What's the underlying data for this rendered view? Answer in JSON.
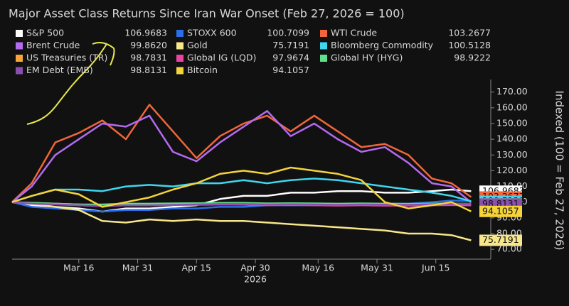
{
  "chart_data": {
    "type": "line",
    "title": "Major Asset Class Returns Since Iran War Onset (Feb 27, 2026 = 100)",
    "y_axis_label": "Indexed (100 = Feb 27, 2026)",
    "year_label": "2026",
    "x": [
      "2026-02-27",
      "2026-03-04",
      "2026-03-10",
      "2026-03-16",
      "2026-03-22",
      "2026-03-28",
      "2026-04-03",
      "2026-04-09",
      "2026-04-15",
      "2026-04-21",
      "2026-04-27",
      "2026-05-03",
      "2026-05-09",
      "2026-05-15",
      "2026-05-21",
      "2026-05-27",
      "2026-06-02",
      "2026-06-08",
      "2026-06-14",
      "2026-06-19",
      "2026-06-24"
    ],
    "xlim": [
      "2026-02-27",
      "2026-06-29"
    ],
    "xticks": [
      {
        "value": "2026-03-16",
        "label": "Mar 16"
      },
      {
        "value": "2026-03-31",
        "label": "Mar 31"
      },
      {
        "value": "2026-04-15",
        "label": "Apr 15"
      },
      {
        "value": "2026-04-30",
        "label": "Apr 30"
      },
      {
        "value": "2026-05-16",
        "label": "May 16"
      },
      {
        "value": "2026-05-31",
        "label": "May 31"
      },
      {
        "value": "2026-06-15",
        "label": "Jun 15"
      }
    ],
    "ylim": [
      66,
      178
    ],
    "yticks": [
      {
        "value": 70,
        "label": "70.00"
      },
      {
        "value": 80,
        "label": "80.00"
      },
      {
        "value": 90,
        "label": "90.00"
      },
      {
        "value": 100,
        "label": "100.00"
      },
      {
        "value": 110,
        "label": "110.00"
      },
      {
        "value": 120,
        "label": "120.00"
      },
      {
        "value": 130,
        "label": "130.00"
      },
      {
        "value": 140,
        "label": "140.00"
      },
      {
        "value": 150,
        "label": "150.00"
      },
      {
        "value": 160,
        "label": "160.00"
      },
      {
        "value": 170,
        "label": "170.00"
      }
    ],
    "series": [
      {
        "name": "S&P 500",
        "legend_value": "106.9683",
        "color": "#ffffff",
        "values": [
          100,
          98,
          97,
          96,
          94,
          96,
          96,
          97,
          98,
          102,
          104,
          104,
          106,
          106,
          107,
          107,
          106,
          106,
          107,
          108,
          106.9683
        ]
      },
      {
        "name": "STOXX 600",
        "legend_value": "100.7099",
        "color": "#2b6fe8",
        "values": [
          100,
          97,
          96,
          95,
          94,
          95,
          95,
          96,
          96,
          97,
          97,
          98,
          98,
          98,
          98,
          99,
          99,
          99,
          100,
          101,
          100.7099
        ]
      },
      {
        "name": "WTI Crude",
        "legend_value": "103.2677",
        "color": "#f0663a",
        "values": [
          100,
          112,
          138,
          144,
          152,
          140,
          162,
          145,
          128,
          142,
          150,
          155,
          145,
          155,
          145,
          135,
          137,
          130,
          115,
          112,
          103.2677
        ]
      },
      {
        "name": "Brent Crude",
        "legend_value": "99.8620",
        "color": "#b36bf0",
        "values": [
          100,
          110,
          130,
          140,
          150,
          148,
          155,
          132,
          126,
          138,
          148,
          158,
          142,
          150,
          140,
          132,
          135,
          125,
          112,
          110,
          99.862
        ]
      },
      {
        "name": "Gold",
        "legend_value": "75.7191",
        "color": "#f7e68a",
        "values": [
          100,
          99,
          97,
          95,
          88,
          87,
          89,
          88,
          89,
          88,
          88,
          87,
          86,
          85,
          84,
          83,
          82,
          80,
          80,
          79,
          75.7191
        ]
      },
      {
        "name": "Bloomberg Commodity",
        "legend_value": "100.5128",
        "color": "#3fd6f0",
        "values": [
          100,
          104,
          108,
          108,
          107,
          110,
          111,
          110,
          112,
          112,
          114,
          112,
          114,
          115,
          114,
          112,
          110,
          108,
          106,
          104,
          100.5128
        ]
      },
      {
        "name": "US Treasuries (TR)",
        "legend_value": "98.7831",
        "color": "#f5a53a",
        "values": [
          100,
          99.5,
          99,
          98.5,
          98,
          98.5,
          98.5,
          98.7,
          98.8,
          99,
          99,
          98.5,
          98.6,
          98.5,
          98.3,
          98.5,
          98.2,
          98.2,
          98.5,
          98.8,
          98.7831
        ]
      },
      {
        "name": "Global IG (LQD)",
        "legend_value": "97.9674",
        "color": "#e845a0",
        "values": [
          100,
          99.5,
          99,
          98,
          97.5,
          98,
          98,
          98.2,
          98.3,
          98.5,
          98.4,
          98,
          98.2,
          98,
          97.8,
          98,
          97.8,
          97.8,
          98,
          98.1,
          97.9674
        ]
      },
      {
        "name": "Global HY (HYG)",
        "legend_value": "98.9222",
        "color": "#5fe08a",
        "values": [
          100,
          99.5,
          99,
          98.5,
          98.5,
          99,
          99,
          99.2,
          99.3,
          99.5,
          99.5,
          99.2,
          99.3,
          99.2,
          99,
          99.2,
          99,
          98.9,
          99,
          99.1,
          98.9222
        ]
      },
      {
        "name": "EM Debt (EMB)",
        "legend_value": "98.8131",
        "color": "#8c4fb0",
        "values": [
          100,
          99,
          98.5,
          98,
          97.5,
          98,
          98,
          98.3,
          98.5,
          98.8,
          98.8,
          98.5,
          98.6,
          98.5,
          98.3,
          98.5,
          98.4,
          98.3,
          98.6,
          98.9,
          98.8131
        ]
      },
      {
        "name": "Bitcoin",
        "legend_value": "94.1057",
        "color": "#f5d33a",
        "values": [
          100,
          104,
          108,
          105,
          97,
          100,
          103,
          108,
          112,
          118,
          120,
          118,
          122,
          120,
          118,
          114,
          100,
          96,
          98,
          100,
          94.1057
        ]
      }
    ]
  }
}
